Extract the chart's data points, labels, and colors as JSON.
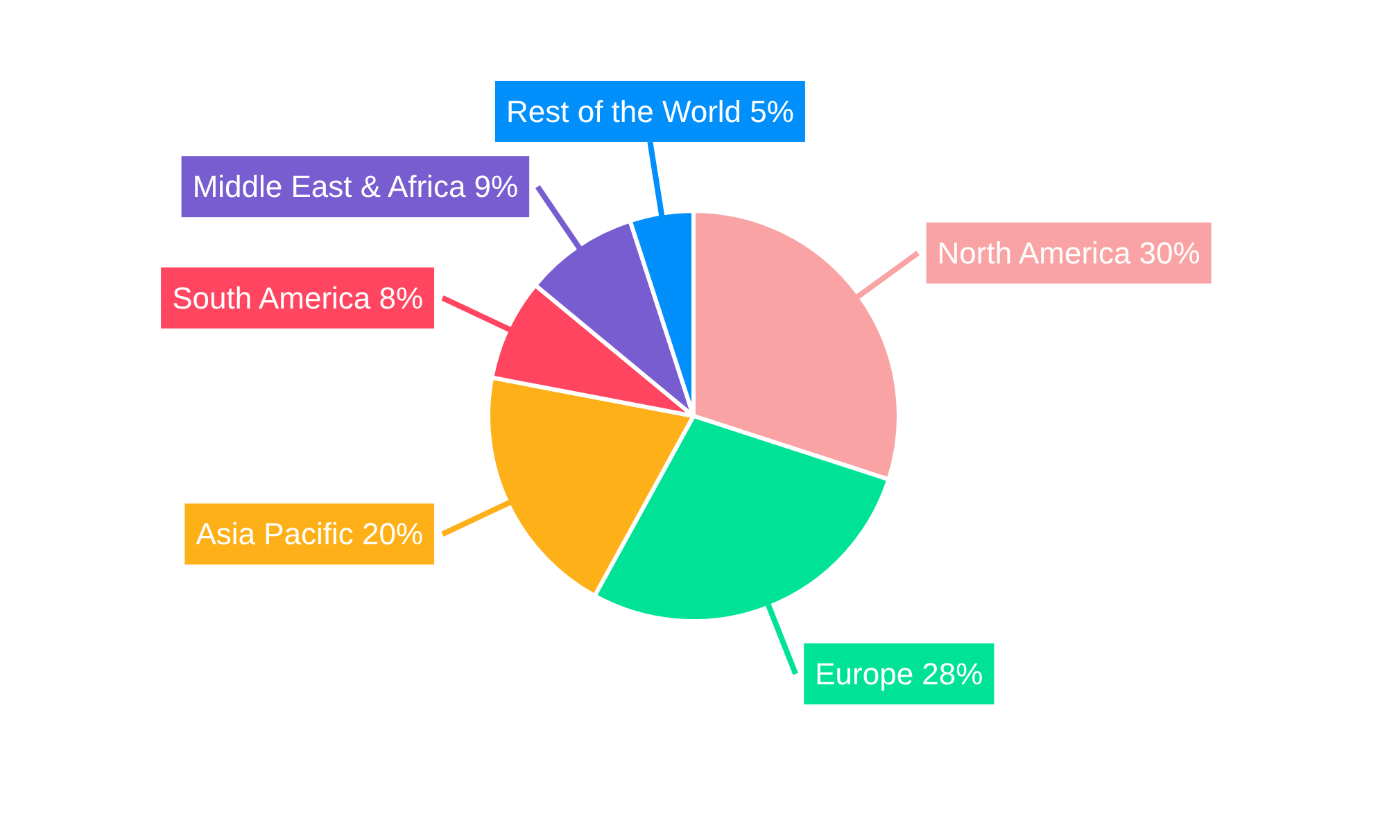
{
  "chart_data": {
    "type": "pie",
    "categories": [
      "North America",
      "Europe",
      "Asia Pacific",
      "South America",
      "Middle East & Africa",
      "Rest of the World"
    ],
    "values": [
      30,
      28,
      20,
      8,
      9,
      5
    ],
    "value_labels": [
      "30%",
      "28%",
      "20%",
      "8%",
      "9%",
      "5%"
    ],
    "colors": [
      "#f9a3a4",
      "#00e396",
      "#feb019",
      "#ff4560",
      "#775dd0",
      "#008ffb"
    ],
    "legend": false
  }
}
